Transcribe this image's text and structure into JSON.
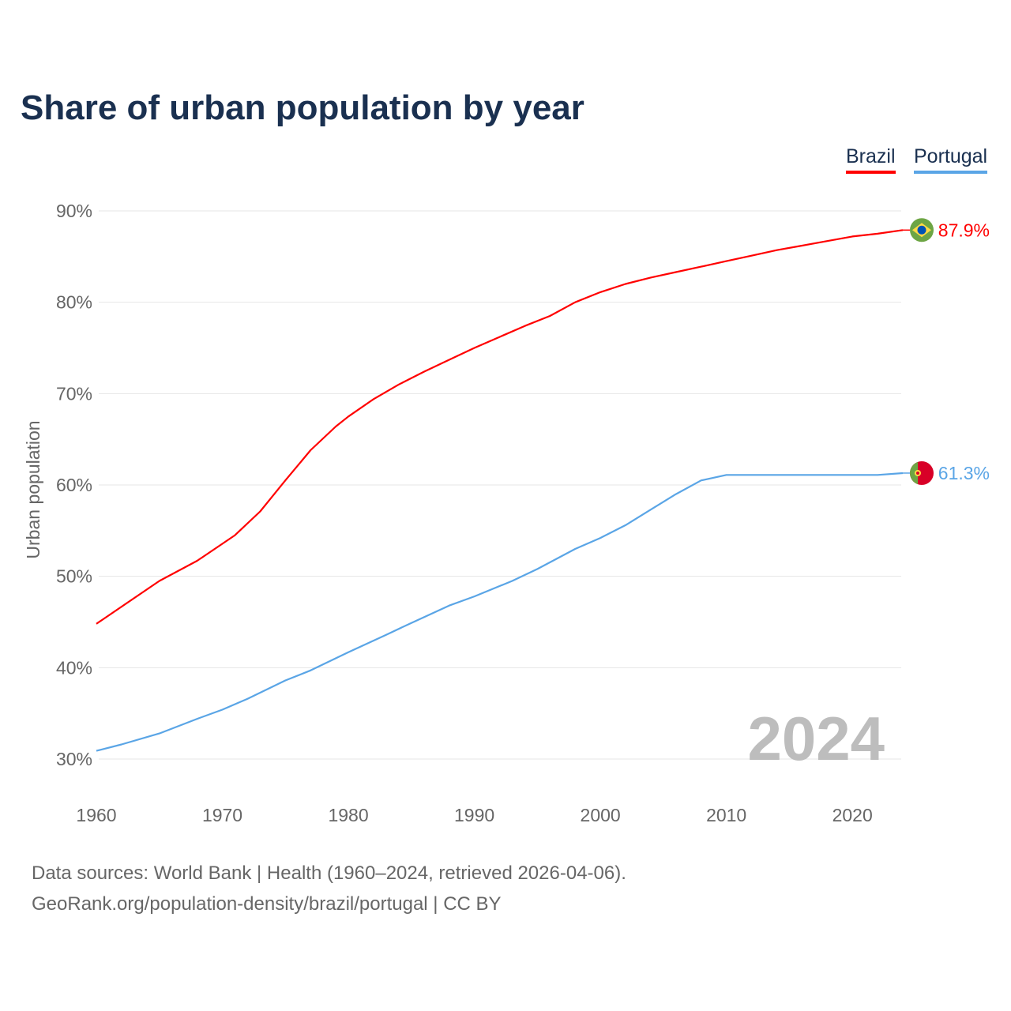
{
  "chart_data": {
    "type": "line",
    "title": "Share of urban population by year",
    "xlabel": "",
    "ylabel": "Urban population",
    "xlim": [
      1960,
      2024
    ],
    "ylim": [
      30,
      90
    ],
    "x_ticks": [
      "1960",
      "1970",
      "1980",
      "1990",
      "2000",
      "2010",
      "2020"
    ],
    "y_ticks": [
      "30%",
      "40%",
      "50%",
      "60%",
      "70%",
      "80%",
      "90%"
    ],
    "grid": true,
    "legend_position": "top-right",
    "year_watermark": "2024",
    "series": [
      {
        "name": "Brazil",
        "color": "#ff0000",
        "end_label": "87.9%",
        "flag": "brazil-flag",
        "points": [
          [
            1960,
            44.8
          ],
          [
            1965,
            49.5
          ],
          [
            1968,
            51.7
          ],
          [
            1971,
            54.5
          ],
          [
            1973,
            57.1
          ],
          [
            1975,
            60.5
          ],
          [
            1977,
            63.8
          ],
          [
            1979,
            66.4
          ],
          [
            1980,
            67.5
          ],
          [
            1982,
            69.4
          ],
          [
            1984,
            71.0
          ],
          [
            1986,
            72.4
          ],
          [
            1988,
            73.7
          ],
          [
            1990,
            75.0
          ],
          [
            1992,
            76.2
          ],
          [
            1994,
            77.4
          ],
          [
            1996,
            78.5
          ],
          [
            1998,
            80.0
          ],
          [
            2000,
            81.1
          ],
          [
            2002,
            82.0
          ],
          [
            2004,
            82.7
          ],
          [
            2006,
            83.3
          ],
          [
            2008,
            83.9
          ],
          [
            2010,
            84.5
          ],
          [
            2012,
            85.1
          ],
          [
            2014,
            85.7
          ],
          [
            2016,
            86.2
          ],
          [
            2018,
            86.7
          ],
          [
            2020,
            87.2
          ],
          [
            2022,
            87.5
          ],
          [
            2024,
            87.9
          ]
        ]
      },
      {
        "name": "Portugal",
        "color": "#5aa5e6",
        "end_label": "61.3%",
        "flag": "portugal-flag",
        "points": [
          [
            1960,
            30.9
          ],
          [
            1962,
            31.6
          ],
          [
            1965,
            32.8
          ],
          [
            1968,
            34.4
          ],
          [
            1970,
            35.4
          ],
          [
            1972,
            36.6
          ],
          [
            1975,
            38.6
          ],
          [
            1977,
            39.7
          ],
          [
            1980,
            41.7
          ],
          [
            1983,
            43.6
          ],
          [
            1985,
            44.9
          ],
          [
            1988,
            46.8
          ],
          [
            1990,
            47.8
          ],
          [
            1993,
            49.5
          ],
          [
            1995,
            50.8
          ],
          [
            1998,
            53.0
          ],
          [
            2000,
            54.2
          ],
          [
            2002,
            55.6
          ],
          [
            2004,
            57.3
          ],
          [
            2006,
            59.0
          ],
          [
            2008,
            60.5
          ],
          [
            2010,
            61.1
          ],
          [
            2015,
            61.1
          ],
          [
            2020,
            61.1
          ],
          [
            2022,
            61.1
          ],
          [
            2024,
            61.3
          ]
        ]
      }
    ]
  },
  "footer": {
    "line1": "Data sources: World Bank | Health (1960–2024, retrieved 2026-04-06).",
    "line2": "GeoRank.org/population-density/brazil/portugal | CC BY"
  }
}
